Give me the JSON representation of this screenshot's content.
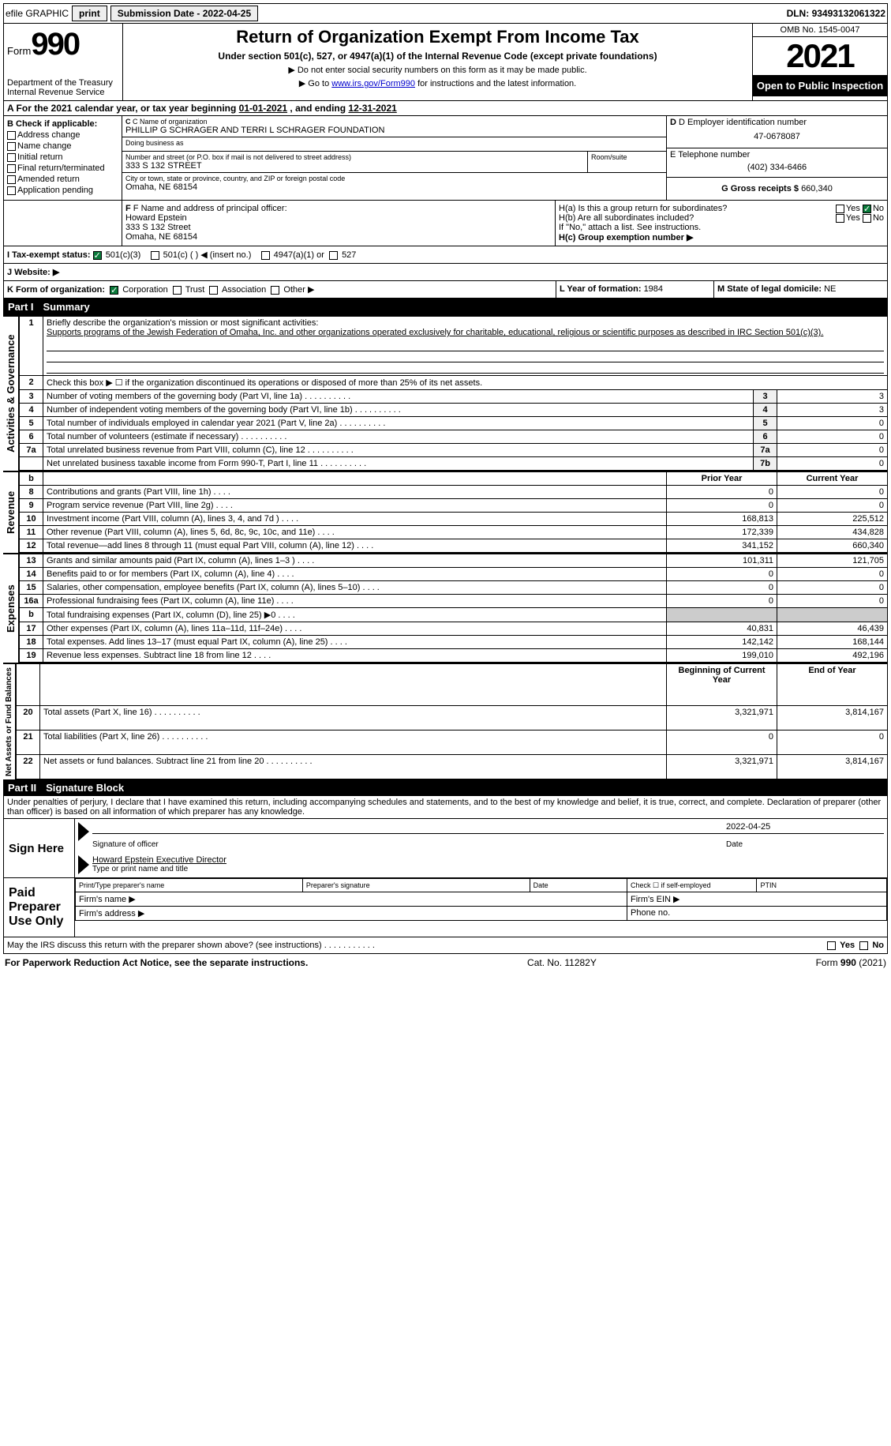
{
  "topbar": {
    "efile": "efile GRAPHIC",
    "print": "print",
    "sub_label": "Submission Date - ",
    "sub_date": "2022-04-25",
    "dln_label": "DLN: ",
    "dln": "93493132061322"
  },
  "header": {
    "form_word": "Form",
    "form_num": "990",
    "dept": "Department of the Treasury",
    "irs": "Internal Revenue Service",
    "title": "Return of Organization Exempt From Income Tax",
    "sub": "Under section 501(c), 527, or 4947(a)(1) of the Internal Revenue Code (except private foundations)",
    "note1": "▶ Do not enter social security numbers on this form as it may be made public.",
    "note2_pre": "▶ Go to ",
    "note2_link": "www.irs.gov/Form990",
    "note2_post": " for instructions and the latest information.",
    "omb": "OMB No. 1545-0047",
    "year": "2021",
    "inspect": "Open to Public Inspection"
  },
  "section_a": {
    "text_pre": "A For the 2021 calendar year, or tax year beginning ",
    "begin": "01-01-2021",
    "mid": " , and ending ",
    "end": "12-31-2021"
  },
  "section_b": {
    "label": "B Check if applicable:",
    "items": [
      "Address change",
      "Name change",
      "Initial return",
      "Final return/terminated",
      "Amended return",
      "Application pending"
    ]
  },
  "section_c": {
    "name_label": "C Name of organization",
    "name": "PHILLIP G SCHRAGER AND TERRI L SCHRAGER FOUNDATION",
    "dba_label": "Doing business as",
    "dba": "",
    "addr_label": "Number and street (or P.O. box if mail is not delivered to street address)",
    "room_label": "Room/suite",
    "addr": "333 S 132 STREET",
    "city_label": "City or town, state or province, country, and ZIP or foreign postal code",
    "city": "Omaha, NE  68154"
  },
  "section_d": {
    "ein_label": "D Employer identification number",
    "ein": "47-0678087",
    "phone_label": "E Telephone number",
    "phone": "(402) 334-6466",
    "gross_label": "G Gross receipts $ ",
    "gross": "660,340"
  },
  "section_f": {
    "label": "F Name and address of principal officer:",
    "name": "Howard Epstein",
    "addr1": "333 S 132 Street",
    "addr2": "Omaha, NE  68154"
  },
  "section_h": {
    "ha": "H(a)  Is this a group return for subordinates?",
    "hb": "H(b)  Are all subordinates included?",
    "hb_note": "If \"No,\" attach a list. See instructions.",
    "hc": "H(c)  Group exemption number ▶",
    "yes": "Yes",
    "no": "No"
  },
  "section_i": {
    "label": "I    Tax-exempt status:",
    "opt1": "501(c)(3)",
    "opt2": "501(c) (   ) ◀ (insert no.)",
    "opt3": "4947(a)(1) or",
    "opt4": "527"
  },
  "section_j": {
    "label": "J   Website: ▶"
  },
  "section_k": {
    "label": "K Form of organization:",
    "opts": [
      "Corporation",
      "Trust",
      "Association",
      "Other ▶"
    ],
    "l_label": "L Year of formation: ",
    "l_val": "1984",
    "m_label": "M State of legal domicile: ",
    "m_val": "NE"
  },
  "part1": {
    "num": "Part I",
    "title": "Summary"
  },
  "p1_activities": {
    "vlabel": "Activities & Governance",
    "line1_label": "1",
    "line1_text": "Briefly describe the organization's mission or most significant activities:",
    "line1_val": "Supports programs of the Jewish Federation of Omaha, Inc. and other organizations operated exclusively for charitable, educational, religious or scientific purposes as described in IRC Section 501(c)(3).",
    "line2_label": "2",
    "line2_text": "Check this box ▶ ☐  if the organization discontinued its operations or disposed of more than 25% of its net assets.",
    "rows": [
      {
        "n": "3",
        "t": "Number of voting members of the governing body (Part VI, line 1a)",
        "l": "3",
        "v": "3"
      },
      {
        "n": "4",
        "t": "Number of independent voting members of the governing body (Part VI, line 1b)",
        "l": "4",
        "v": "3"
      },
      {
        "n": "5",
        "t": "Total number of individuals employed in calendar year 2021 (Part V, line 2a)",
        "l": "5",
        "v": "0"
      },
      {
        "n": "6",
        "t": "Total number of volunteers (estimate if necessary)",
        "l": "6",
        "v": "0"
      },
      {
        "n": "7a",
        "t": "Total unrelated business revenue from Part VIII, column (C), line 12",
        "l": "7a",
        "v": "0"
      },
      {
        "n": "",
        "t": "Net unrelated business taxable income from Form 990-T, Part I, line 11",
        "l": "7b",
        "v": "0"
      }
    ]
  },
  "p1_revenue": {
    "vlabel": "Revenue",
    "hdr_b": "b",
    "hdr_prior": "Prior Year",
    "hdr_current": "Current Year",
    "rows": [
      {
        "n": "8",
        "t": "Contributions and grants (Part VIII, line 1h)",
        "p": "0",
        "c": "0"
      },
      {
        "n": "9",
        "t": "Program service revenue (Part VIII, line 2g)",
        "p": "0",
        "c": "0"
      },
      {
        "n": "10",
        "t": "Investment income (Part VIII, column (A), lines 3, 4, and 7d )",
        "p": "168,813",
        "c": "225,512"
      },
      {
        "n": "11",
        "t": "Other revenue (Part VIII, column (A), lines 5, 6d, 8c, 9c, 10c, and 11e)",
        "p": "172,339",
        "c": "434,828"
      },
      {
        "n": "12",
        "t": "Total revenue—add lines 8 through 11 (must equal Part VIII, column (A), line 12)",
        "p": "341,152",
        "c": "660,340"
      }
    ]
  },
  "p1_expenses": {
    "vlabel": "Expenses",
    "rows": [
      {
        "n": "13",
        "t": "Grants and similar amounts paid (Part IX, column (A), lines 1–3 )",
        "p": "101,311",
        "c": "121,705"
      },
      {
        "n": "14",
        "t": "Benefits paid to or for members (Part IX, column (A), line 4)",
        "p": "0",
        "c": "0"
      },
      {
        "n": "15",
        "t": "Salaries, other compensation, employee benefits (Part IX, column (A), lines 5–10)",
        "p": "0",
        "c": "0"
      },
      {
        "n": "16a",
        "t": "Professional fundraising fees (Part IX, column (A), line 11e)",
        "p": "0",
        "c": "0"
      },
      {
        "n": "b",
        "t": "Total fundraising expenses (Part IX, column (D), line 25) ▶0",
        "p": "",
        "c": "",
        "shade": true
      },
      {
        "n": "17",
        "t": "Other expenses (Part IX, column (A), lines 11a–11d, 11f–24e)",
        "p": "40,831",
        "c": "46,439"
      },
      {
        "n": "18",
        "t": "Total expenses. Add lines 13–17 (must equal Part IX, column (A), line 25)",
        "p": "142,142",
        "c": "168,144"
      },
      {
        "n": "19",
        "t": "Revenue less expenses. Subtract line 18 from line 12",
        "p": "199,010",
        "c": "492,196"
      }
    ]
  },
  "p1_netassets": {
    "vlabel": "Net Assets or Fund Balances",
    "hdr_begin": "Beginning of Current Year",
    "hdr_end": "End of Year",
    "rows": [
      {
        "n": "20",
        "t": "Total assets (Part X, line 16)",
        "p": "3,321,971",
        "c": "3,814,167"
      },
      {
        "n": "21",
        "t": "Total liabilities (Part X, line 26)",
        "p": "0",
        "c": "0"
      },
      {
        "n": "22",
        "t": "Net assets or fund balances. Subtract line 21 from line 20",
        "p": "3,321,971",
        "c": "3,814,167"
      }
    ]
  },
  "part2": {
    "num": "Part II",
    "title": "Signature Block"
  },
  "sig": {
    "penalty": "Under penalties of perjury, I declare that I have examined this return, including accompanying schedules and statements, and to the best of my knowledge and belief, it is true, correct, and complete. Declaration of preparer (other than officer) is based on all information of which preparer has any knowledge.",
    "sign_here": "Sign Here",
    "sig_officer": "Signature of officer",
    "sig_date": "2022-04-25",
    "date_label": "Date",
    "name_val": "Howard Epstein  Executive Director",
    "name_label": "Type or print name and title",
    "paid": "Paid Preparer Use Only",
    "pp_name": "Print/Type preparer's name",
    "pp_sig": "Preparer's signature",
    "pp_date": "Date",
    "pp_check": "Check ☐ if self-employed",
    "pp_ptin": "PTIN",
    "firm_name": "Firm's name   ▶",
    "firm_ein": "Firm's EIN ▶",
    "firm_addr": "Firm's address ▶",
    "firm_phone": "Phone no."
  },
  "discuss": {
    "text": "May the IRS discuss this return with the preparer shown above? (see instructions)",
    "yes": "Yes",
    "no": "No"
  },
  "footer": {
    "left": "For Paperwork Reduction Act Notice, see the separate instructions.",
    "mid": "Cat. No. 11282Y",
    "right": "Form 990 (2021)"
  }
}
